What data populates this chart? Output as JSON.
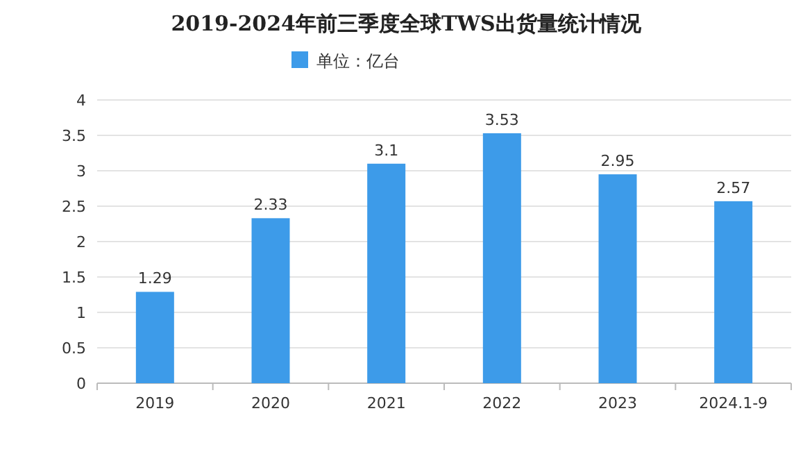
{
  "chart_data": {
    "type": "bar",
    "title": "2019-2024年前三季度全球TWS出货量统计情况",
    "categories": [
      "2019",
      "2020",
      "2021",
      "2022",
      "2023",
      "2024.1-9"
    ],
    "series": [
      {
        "name": "单位：亿台",
        "color": "#3d9be9",
        "values": [
          1.29,
          2.33,
          3.1,
          3.53,
          2.95,
          2.57
        ]
      }
    ],
    "ylim": [
      0,
      4
    ],
    "yticks": [
      0,
      0.5,
      1,
      1.5,
      2,
      2.5,
      3,
      3.5,
      4
    ],
    "grid": "y",
    "legend": "top",
    "data_labels": true
  }
}
